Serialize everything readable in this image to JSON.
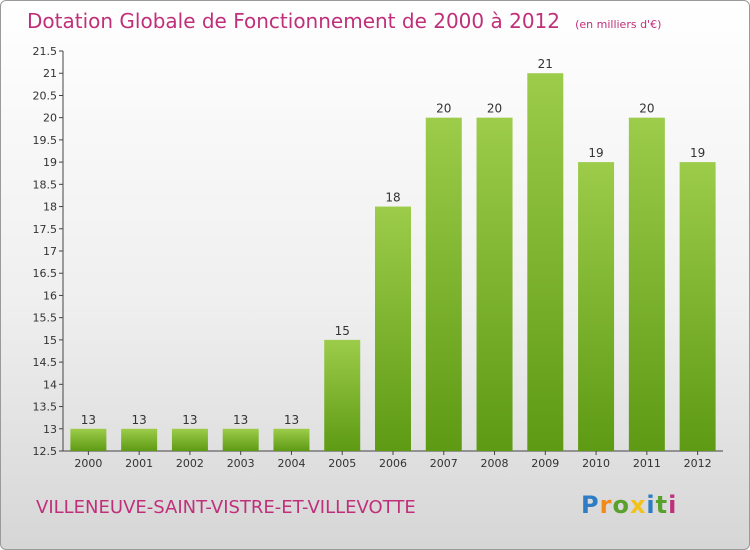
{
  "header": {
    "title": "Dotation Globale de Fonctionnement de 2000 à 2012",
    "unit": "(en milliers d'€)"
  },
  "footer": {
    "commune": "VILLENEUVE-SAINT-VISTRE-ET-VILLEVOTTE",
    "brand": "Proxiti"
  },
  "colors": {
    "title": "#c0307a",
    "bar_top": "#9ccc4a",
    "bar_bottom": "#5e9a14",
    "brand_letters": [
      "#2e7dc4",
      "#f28a1a",
      "#5aa02c",
      "#f2c21a",
      "#2e7dc4",
      "#5aa02c",
      "#c0307a"
    ]
  },
  "chart_data": {
    "type": "bar",
    "title": "Dotation Globale de Fonctionnement de 2000 à 2012",
    "categories": [
      "2000",
      "2001",
      "2002",
      "2003",
      "2004",
      "2005",
      "2006",
      "2007",
      "2008",
      "2009",
      "2010",
      "2011",
      "2012"
    ],
    "values": [
      13,
      13,
      13,
      13,
      13,
      15,
      18,
      20,
      20,
      21,
      19,
      20,
      19
    ],
    "data_labels": [
      "13",
      "13",
      "13",
      "13",
      "13",
      "15",
      "18",
      "20",
      "20",
      "21",
      "19",
      "20",
      "19"
    ],
    "xlabel": "",
    "ylabel": "",
    "ylim": [
      12.5,
      21.5
    ],
    "yticks": [
      "12.5",
      "13",
      "13.5",
      "14",
      "14.5",
      "15",
      "15.5",
      "16",
      "16.5",
      "17",
      "17.5",
      "18",
      "18.5",
      "19",
      "19.5",
      "20",
      "20.5",
      "21",
      "21.5"
    ],
    "grid": false,
    "legend": "none"
  }
}
